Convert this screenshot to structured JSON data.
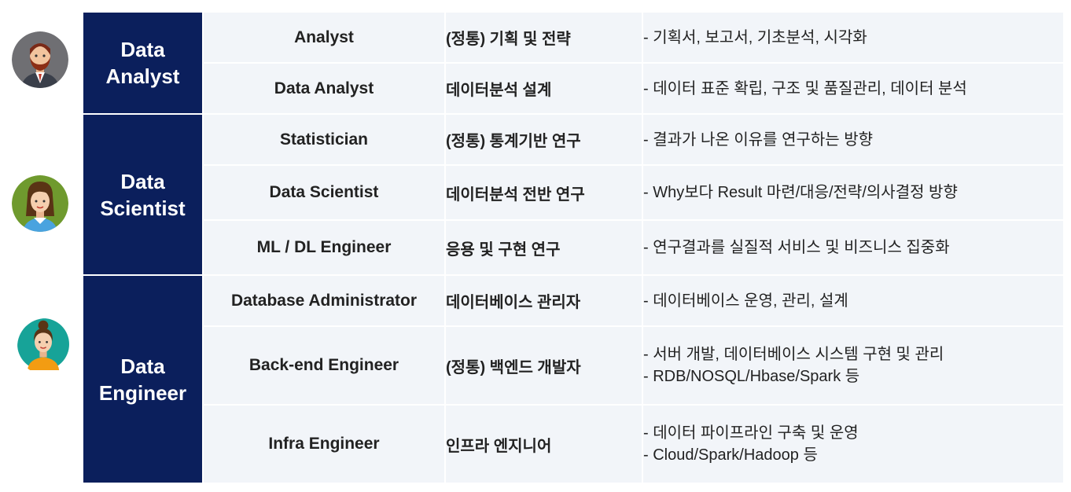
{
  "groups": [
    {
      "name": "Data Analyst",
      "name_lines": [
        "Data",
        "Analyst"
      ],
      "roles": [
        {
          "title": "Analyst",
          "focus": "(정통) 기획 및 전략",
          "desc": [
            "- 기획서, 보고서, 기초분석, 시각화"
          ]
        },
        {
          "title": "Data Analyst",
          "focus": "데이터분석 설계",
          "desc": [
            "- 데이터 표준 확립, 구조 및 품질관리, 데이터 분석"
          ]
        }
      ]
    },
    {
      "name": "Data Scientist",
      "name_lines": [
        "Data",
        "Scientist"
      ],
      "roles": [
        {
          "title": "Statistician",
          "focus": "(정통) 통계기반 연구",
          "desc": [
            "- 결과가 나온 이유를 연구하는 방향"
          ]
        },
        {
          "title": "Data Scientist",
          "focus": "데이터분석 전반 연구",
          "desc": [
            "- Why보다 Result 마련/대응/전략/의사결정 방향"
          ]
        },
        {
          "title": "ML / DL Engineer",
          "focus": "응용 및 구현 연구",
          "desc": [
            "- 연구결과를 실질적 서비스 및 비즈니스 집중화"
          ]
        }
      ]
    },
    {
      "name": "Data Engineer",
      "name_lines": [
        "Data",
        "Engineer"
      ],
      "roles": [
        {
          "title": "Database Administrator",
          "focus": "데이터베이스 관리자",
          "desc": [
            "- 데이터베이스 운영, 관리, 설계"
          ]
        },
        {
          "title": "Back-end Engineer",
          "focus": "(정통) 백엔드 개발자",
          "desc": [
            "- 서버 개발, 데이터베이스 시스템 구현 및 관리",
            "- RDB/NOSQL/Hbase/Spark 등"
          ]
        },
        {
          "title": "Infra Engineer",
          "focus": "인프라 엔지니어",
          "desc": [
            "- 데이터 파이프라인 구축 및 운영",
            "- Cloud/Spark/Hadoop 등"
          ]
        }
      ]
    }
  ],
  "avatars": [
    {
      "icon": "man-beard-avatar-icon",
      "bg": "#6f6f73"
    },
    {
      "icon": "woman-avatar-icon",
      "bg": "#6f9a2e"
    },
    {
      "icon": "woman-bun-avatar-icon",
      "bg": "#17a398"
    }
  ],
  "colors": {
    "group_bg": "#0b1f5c",
    "cell_bg": "#f2f5f9"
  }
}
